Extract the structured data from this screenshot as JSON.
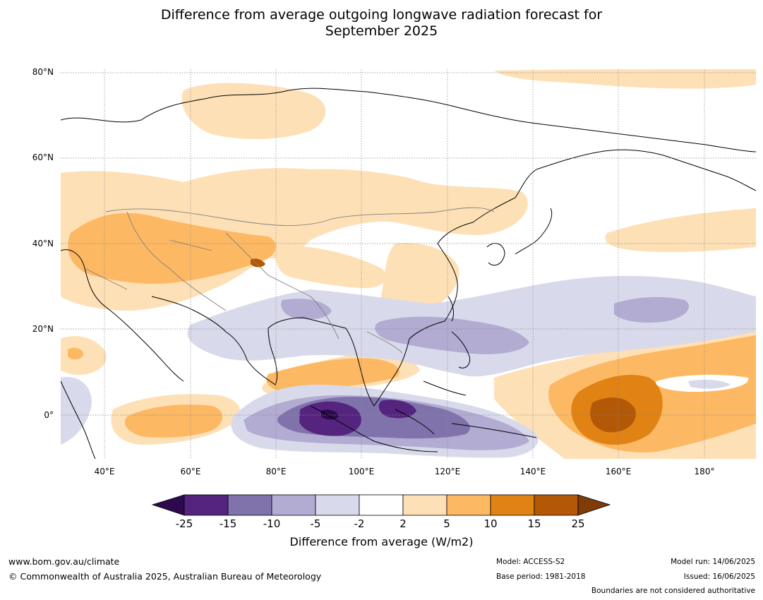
{
  "title": {
    "line1": "Difference from average outgoing longwave radiation forecast for",
    "line2": "September 2025"
  },
  "map": {
    "lat_labels": [
      "80°N",
      "60°N",
      "40°N",
      "20°N",
      "0°"
    ],
    "lon_labels": [
      "40°E",
      "60°E",
      "80°E",
      "100°E",
      "120°E",
      "140°E",
      "160°E",
      "180°"
    ],
    "colors": {
      "below_min": "#2d0a4e",
      "c1": "#54247f",
      "c2": "#8073ac",
      "c3": "#b2abd2",
      "c4": "#d8daeb",
      "c5": "#ffffff",
      "c6": "#fee0b6",
      "c7": "#fdb863",
      "c8": "#e08214",
      "c9": "#b35806",
      "above_max": "#7f3b08"
    }
  },
  "colorbar": {
    "ticks": [
      "-25",
      "-15",
      "-10",
      "-5",
      "-2",
      "2",
      "5",
      "10",
      "15",
      "25"
    ],
    "label": "Difference from average (W/m2)"
  },
  "footer": {
    "website": "www.bom.gov.au/climate",
    "copyright": "© Commonwealth of Australia 2025, Australian Bureau of Meteorology",
    "model": "Model: ACCESS-S2",
    "base_period": "Base period: 1981-2018",
    "model_run": "Model run: 14/06/2025",
    "issued": "Issued: 16/06/2025",
    "disclaimer": "Boundaries are not considered authoritative"
  }
}
